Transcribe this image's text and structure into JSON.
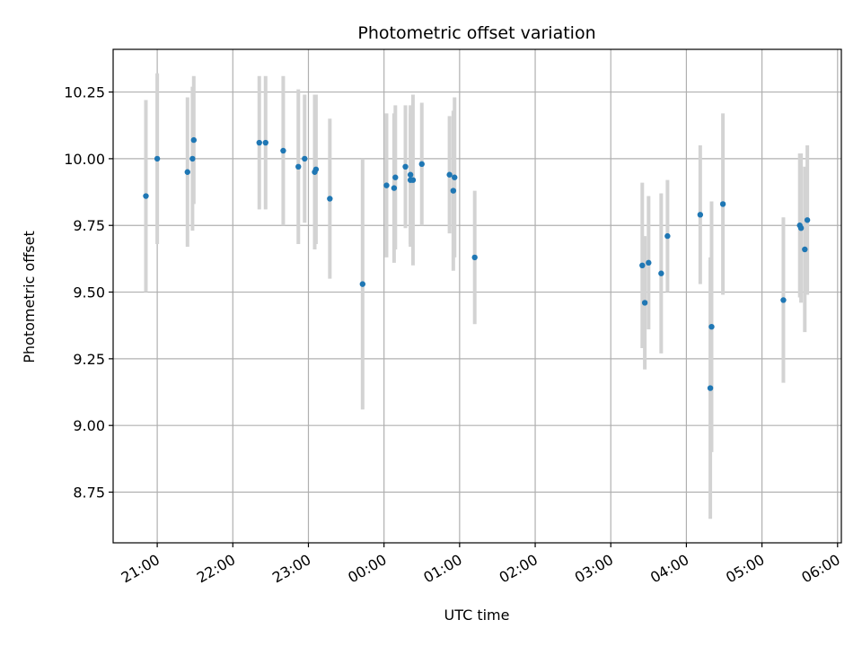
{
  "chart_data": {
    "type": "scatter",
    "title": "Photometric offset variation",
    "xlabel": "UTC time",
    "ylabel": "Photometric offset",
    "grid": true,
    "xlim": [
      "20:25",
      "06:03"
    ],
    "ylim": [
      8.56,
      10.41
    ],
    "x_ticks": [
      "21:00",
      "22:00",
      "23:00",
      "00:00",
      "01:00",
      "02:00",
      "03:00",
      "04:00",
      "05:00",
      "06:00"
    ],
    "y_ticks": [
      "8.75",
      "9.00",
      "9.25",
      "9.50",
      "9.75",
      "10.00",
      "10.25"
    ],
    "point_color": "#1f77b4",
    "errorbar_color": "#d3d3d3",
    "points": [
      {
        "x": "20:51",
        "y": 9.86,
        "err": 0.36
      },
      {
        "x": "21:00",
        "y": 10.0,
        "err": 0.32
      },
      {
        "x": "21:24",
        "y": 9.95,
        "err": 0.28
      },
      {
        "x": "21:28",
        "y": 10.0,
        "err": 0.27
      },
      {
        "x": "21:29",
        "y": 10.07,
        "err": 0.24
      },
      {
        "x": "22:21",
        "y": 10.06,
        "err": 0.25
      },
      {
        "x": "22:26",
        "y": 10.06,
        "err": 0.25
      },
      {
        "x": "22:40",
        "y": 10.03,
        "err": 0.28
      },
      {
        "x": "22:52",
        "y": 9.97,
        "err": 0.29
      },
      {
        "x": "22:57",
        "y": 10.0,
        "err": 0.24
      },
      {
        "x": "23:05",
        "y": 9.95,
        "err": 0.29
      },
      {
        "x": "23:06",
        "y": 9.96,
        "err": 0.28
      },
      {
        "x": "23:17",
        "y": 9.85,
        "err": 0.3
      },
      {
        "x": "23:43",
        "y": 9.53,
        "err": 0.47
      },
      {
        "x": "00:02",
        "y": 9.9,
        "err": 0.27
      },
      {
        "x": "00:08",
        "y": 9.89,
        "err": 0.28
      },
      {
        "x": "00:09",
        "y": 9.93,
        "err": 0.27
      },
      {
        "x": "00:17",
        "y": 9.97,
        "err": 0.23
      },
      {
        "x": "00:21",
        "y": 9.94,
        "err": 0.26
      },
      {
        "x": "00:21",
        "y": 9.92,
        "err": 0.25
      },
      {
        "x": "00:23",
        "y": 9.92,
        "err": 0.32
      },
      {
        "x": "00:30",
        "y": 9.98,
        "err": 0.23
      },
      {
        "x": "00:52",
        "y": 9.94,
        "err": 0.22
      },
      {
        "x": "00:55",
        "y": 9.88,
        "err": 0.3
      },
      {
        "x": "00:56",
        "y": 9.93,
        "err": 0.3
      },
      {
        "x": "01:12",
        "y": 9.63,
        "err": 0.25
      },
      {
        "x": "03:25",
        "y": 9.6,
        "err": 0.31
      },
      {
        "x": "03:27",
        "y": 9.46,
        "err": 0.25
      },
      {
        "x": "03:30",
        "y": 9.61,
        "err": 0.25
      },
      {
        "x": "03:40",
        "y": 9.57,
        "err": 0.3
      },
      {
        "x": "03:45",
        "y": 9.71,
        "err": 0.21
      },
      {
        "x": "04:11",
        "y": 9.79,
        "err": 0.26
      },
      {
        "x": "04:19",
        "y": 9.14,
        "err": 0.49
      },
      {
        "x": "04:20",
        "y": 9.37,
        "err": 0.47
      },
      {
        "x": "04:29",
        "y": 9.83,
        "err": 0.34
      },
      {
        "x": "05:17",
        "y": 9.47,
        "err": 0.31
      },
      {
        "x": "05:30",
        "y": 9.75,
        "err": 0.27
      },
      {
        "x": "05:31",
        "y": 9.74,
        "err": 0.28
      },
      {
        "x": "05:34",
        "y": 9.66,
        "err": 0.31
      },
      {
        "x": "05:36",
        "y": 9.77,
        "err": 0.28
      }
    ]
  }
}
